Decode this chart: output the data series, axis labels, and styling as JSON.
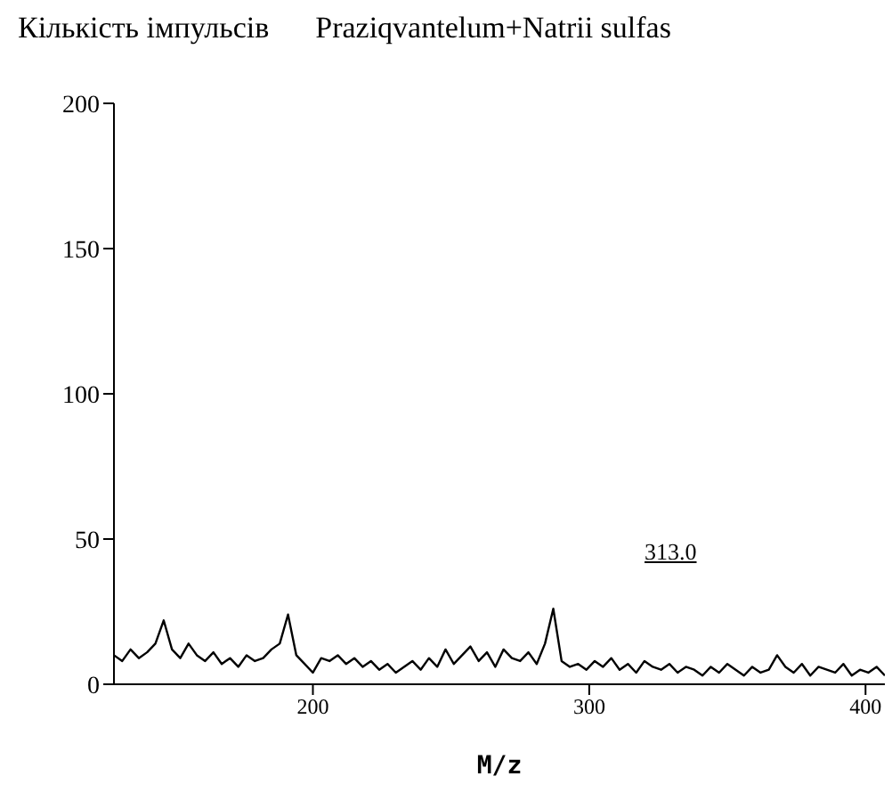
{
  "chart_data": {
    "type": "line",
    "title": "Praziqvantelum+Natrii sulfas",
    "ylabel": "Кількість імпульсів",
    "xlabel": "M/z",
    "x": [
      128,
      131,
      134,
      137,
      140,
      143,
      146,
      149,
      152,
      155,
      158,
      161,
      164,
      167,
      170,
      173,
      176,
      179,
      182,
      185,
      188,
      191,
      194,
      197,
      200,
      203,
      206,
      209,
      212,
      215,
      218,
      221,
      224,
      227,
      230,
      233,
      236,
      239,
      242,
      245,
      248,
      251,
      254,
      257,
      260,
      263,
      266,
      269,
      272,
      275,
      278,
      281,
      284,
      287,
      290,
      293,
      296,
      299,
      302,
      305,
      308,
      311,
      314,
      317,
      320,
      323,
      326,
      329,
      332,
      335,
      338,
      341,
      344,
      347,
      350,
      353,
      356,
      359,
      362,
      365,
      368,
      371,
      374,
      377,
      380,
      383,
      386,
      389,
      392,
      395,
      398,
      401,
      404,
      407
    ],
    "series": [
      {
        "color": "#000000",
        "values": [
          10,
          8,
          12,
          9,
          11,
          14,
          22,
          12,
          9,
          14,
          10,
          8,
          11,
          7,
          9,
          6,
          10,
          8,
          9,
          12,
          14,
          24,
          10,
          7,
          4,
          9,
          8,
          10,
          7,
          9,
          6,
          8,
          5,
          7,
          4,
          6,
          8,
          5,
          9,
          6,
          12,
          7,
          10,
          13,
          8,
          11,
          6,
          12,
          9,
          8,
          11,
          7,
          14,
          26,
          8,
          6,
          7,
          5,
          8,
          6,
          9,
          5,
          7,
          4,
          8,
          6,
          5,
          7,
          4,
          6,
          5,
          3,
          6,
          4,
          7,
          5,
          3,
          6,
          4,
          5,
          10,
          6,
          4,
          7,
          3,
          6,
          5,
          4,
          7,
          3,
          5,
          4,
          6,
          3
        ]
      }
    ],
    "xlim": [
      128,
      407
    ],
    "xticks": [
      200,
      300,
      400
    ],
    "ylim": [
      0,
      200
    ],
    "yticks": [
      0,
      50,
      100,
      150,
      200
    ],
    "grid": false,
    "marker": "none",
    "line_style": "solid",
    "annotations": [
      "313.0"
    ]
  }
}
